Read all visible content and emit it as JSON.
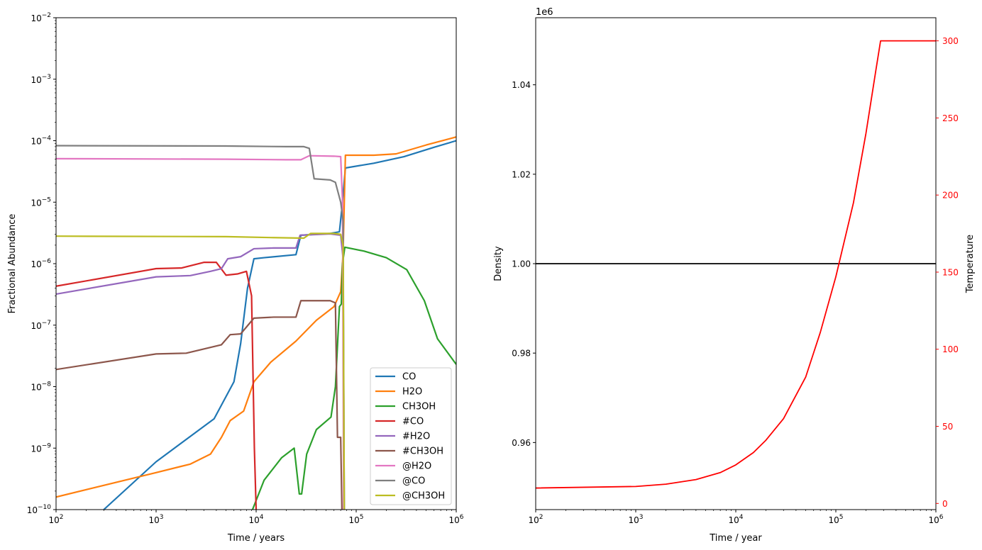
{
  "chart_data": [
    {
      "type": "line",
      "xscale": "log",
      "yscale": "log",
      "xlabel": "Time / years",
      "ylabel": "Fractional Abundance",
      "xlim": [
        100,
        1000000
      ],
      "ylim": [
        1e-10,
        0.01
      ],
      "x_ticks": [
        {
          "value": 100,
          "base": "10",
          "exp": "2"
        },
        {
          "value": 1000,
          "base": "10",
          "exp": "3"
        },
        {
          "value": 10000,
          "base": "10",
          "exp": "4"
        },
        {
          "value": 100000,
          "base": "10",
          "exp": "5"
        },
        {
          "value": 1000000,
          "base": "10",
          "exp": "6"
        }
      ],
      "y_ticks": [
        {
          "value": 1e-10,
          "base": "10",
          "exp": "−10"
        },
        {
          "value": 1e-09,
          "base": "10",
          "exp": "−9"
        },
        {
          "value": 1e-08,
          "base": "10",
          "exp": "−8"
        },
        {
          "value": 1e-07,
          "base": "10",
          "exp": "−7"
        },
        {
          "value": 1e-06,
          "base": "10",
          "exp": "−6"
        },
        {
          "value": 1e-05,
          "base": "10",
          "exp": "−5"
        },
        {
          "value": 0.0001,
          "base": "10",
          "exp": "−4"
        },
        {
          "value": 0.001,
          "base": "10",
          "exp": "−3"
        },
        {
          "value": 0.01,
          "base": "10",
          "exp": "−2"
        }
      ],
      "legend_position": "lower-right",
      "series": [
        {
          "name": "CO",
          "color": "#1f77b4",
          "points": [
            [
              300,
              1e-10
            ],
            [
              1000,
              6e-10
            ],
            [
              3800,
              3e-09
            ],
            [
              6000,
              1.2e-08
            ],
            [
              7000,
              5e-08
            ],
            [
              8200,
              4e-07
            ],
            [
              9500,
              1.2e-06
            ],
            [
              12000,
              1.25e-06
            ],
            [
              25000,
              1.4e-06
            ],
            [
              28000,
              2.9e-06
            ],
            [
              55000,
              3.1e-06
            ],
            [
              68000,
              3.3e-06
            ],
            [
              72000,
              8e-06
            ],
            [
              78000,
              3.6e-05
            ],
            [
              150000,
              4.3e-05
            ],
            [
              300000,
              5.5e-05
            ],
            [
              600000,
              7.8e-05
            ],
            [
              1000000,
              0.0001
            ]
          ]
        },
        {
          "name": "H2O",
          "color": "#ff7f0e",
          "points": [
            [
              100,
              1.6e-10
            ],
            [
              1000,
              4e-10
            ],
            [
              2200,
              5.5e-10
            ],
            [
              3500,
              8e-10
            ],
            [
              4500,
              1.5e-09
            ],
            [
              5500,
              2.8e-09
            ],
            [
              7500,
              4e-09
            ],
            [
              9500,
              1.2e-08
            ],
            [
              14000,
              2.5e-08
            ],
            [
              25000,
              5.5e-08
            ],
            [
              40000,
              1.2e-07
            ],
            [
              60000,
              2e-07
            ],
            [
              70000,
              3.5e-07
            ],
            [
              74000,
              1.5e-06
            ],
            [
              78000,
              5.8e-05
            ],
            [
              150000,
              5.8e-05
            ],
            [
              250000,
              6.1e-05
            ],
            [
              500000,
              8.5e-05
            ],
            [
              1000000,
              0.000115
            ]
          ]
        },
        {
          "name": "CH3OH",
          "color": "#2ca02c",
          "points": [
            [
              9200,
              1e-10
            ],
            [
              12000,
              3e-10
            ],
            [
              18000,
              7e-10
            ],
            [
              24000,
              1e-09
            ],
            [
              27000,
              1.8e-10
            ],
            [
              28500,
              1.8e-10
            ],
            [
              32000,
              8e-10
            ],
            [
              40000,
              2e-09
            ],
            [
              56000,
              3.2e-09
            ],
            [
              62000,
              1e-08
            ],
            [
              68000,
              2e-07
            ],
            [
              71000,
              2.2e-07
            ],
            [
              73000,
              1e-06
            ],
            [
              77000,
              1.85e-06
            ],
            [
              120000,
              1.6e-06
            ],
            [
              200000,
              1.25e-06
            ],
            [
              320000,
              8e-07
            ],
            [
              480000,
              2.5e-07
            ],
            [
              650000,
              6e-08
            ],
            [
              1000000,
              2.3e-08
            ]
          ]
        },
        {
          "name": "#CO",
          "color": "#d62728",
          "points": [
            [
              100,
              4.3e-07
            ],
            [
              1000,
              8.3e-07
            ],
            [
              1800,
              8.5e-07
            ],
            [
              3000,
              1.05e-06
            ],
            [
              4000,
              1.05e-06
            ],
            [
              5000,
              6.5e-07
            ],
            [
              6500,
              6.8e-07
            ],
            [
              8000,
              7.5e-07
            ],
            [
              9000,
              3e-07
            ],
            [
              9600,
              1e-09
            ],
            [
              10000,
              1e-10
            ]
          ]
        },
        {
          "name": "#H2O",
          "color": "#9467bd",
          "points": [
            [
              100,
              3.2e-07
            ],
            [
              1000,
              6.1e-07
            ],
            [
              2200,
              6.4e-07
            ],
            [
              3500,
              7.5e-07
            ],
            [
              4500,
              8.3e-07
            ],
            [
              5200,
              1.2e-06
            ],
            [
              7000,
              1.3e-06
            ],
            [
              9500,
              1.75e-06
            ],
            [
              15000,
              1.8e-06
            ],
            [
              25000,
              1.8e-06
            ],
            [
              27500,
              2.9e-06
            ],
            [
              55000,
              3.05e-06
            ],
            [
              70000,
              2.9e-06
            ],
            [
              74000,
              1.2e-06
            ],
            [
              76000,
              1e-10
            ]
          ]
        },
        {
          "name": "#CH3OH",
          "color": "#8c564b",
          "points": [
            [
              100,
              1.9e-08
            ],
            [
              1000,
              3.4e-08
            ],
            [
              2000,
              3.5e-08
            ],
            [
              3200,
              4.2e-08
            ],
            [
              4500,
              4.8e-08
            ],
            [
              5500,
              7e-08
            ],
            [
              7000,
              7.2e-08
            ],
            [
              9500,
              1.3e-07
            ],
            [
              15000,
              1.35e-07
            ],
            [
              25000,
              1.35e-07
            ],
            [
              28000,
              2.5e-07
            ],
            [
              55000,
              2.5e-07
            ],
            [
              62000,
              2.3e-07
            ],
            [
              65000,
              1.5e-09
            ],
            [
              70000,
              1.5e-09
            ],
            [
              72000,
              1e-10
            ]
          ]
        },
        {
          "name": "@H2O",
          "color": "#e377c2",
          "points": [
            [
              100,
              5.1e-05
            ],
            [
              5000,
              5e-05
            ],
            [
              20000,
              4.9e-05
            ],
            [
              28000,
              4.9e-05
            ],
            [
              34000,
              5.7e-05
            ],
            [
              60000,
              5.6e-05
            ],
            [
              70000,
              5.5e-05
            ],
            [
              73000,
              1e-05
            ],
            [
              75000,
              1e-10
            ]
          ]
        },
        {
          "name": "@CO",
          "color": "#7f7f7f",
          "points": [
            [
              100,
              8.3e-05
            ],
            [
              5000,
              8.2e-05
            ],
            [
              20000,
              8e-05
            ],
            [
              30000,
              8e-05
            ],
            [
              34000,
              7.5e-05
            ],
            [
              38000,
              2.4e-05
            ],
            [
              55000,
              2.3e-05
            ],
            [
              62000,
              2.1e-05
            ],
            [
              70000,
              1e-05
            ],
            [
              74000,
              5e-06
            ],
            [
              76000,
              1e-10
            ]
          ]
        },
        {
          "name": "@CH3OH",
          "color": "#bcbd22",
          "points": [
            [
              100,
              2.8e-06
            ],
            [
              5000,
              2.75e-06
            ],
            [
              15000,
              2.65e-06
            ],
            [
              30000,
              2.6e-06
            ],
            [
              35000,
              3.1e-06
            ],
            [
              60000,
              3.1e-06
            ],
            [
              70000,
              3e-06
            ],
            [
              74000,
              2e-06
            ],
            [
              76000,
              1e-10
            ]
          ]
        }
      ]
    },
    {
      "type": "line",
      "xscale": "log",
      "xlabel": "Time / year",
      "ylabel_left": "Density",
      "ylabel_right": "Temperature",
      "offset_label": "1e6",
      "xlim": [
        100,
        1000000
      ],
      "ylim_left": [
        0.945,
        1.055
      ],
      "ylim_right": [
        -4,
        315
      ],
      "x_ticks": [
        {
          "value": 100,
          "base": "10",
          "exp": "2"
        },
        {
          "value": 1000,
          "base": "10",
          "exp": "3"
        },
        {
          "value": 10000,
          "base": "10",
          "exp": "4"
        },
        {
          "value": 100000,
          "base": "10",
          "exp": "5"
        },
        {
          "value": 1000000,
          "base": "10",
          "exp": "6"
        }
      ],
      "y_left_ticks": [
        {
          "value": 0.96,
          "label": "0.96"
        },
        {
          "value": 0.98,
          "label": "0.98"
        },
        {
          "value": 1.0,
          "label": "1.00"
        },
        {
          "value": 1.02,
          "label": "1.02"
        },
        {
          "value": 1.04,
          "label": "1.04"
        }
      ],
      "y_right_ticks": [
        {
          "value": 0,
          "label": "0"
        },
        {
          "value": 50,
          "label": "50"
        },
        {
          "value": 100,
          "label": "100"
        },
        {
          "value": 150,
          "label": "150"
        },
        {
          "value": 200,
          "label": "200"
        },
        {
          "value": 250,
          "label": "250"
        },
        {
          "value": 300,
          "label": "300"
        }
      ],
      "series": [
        {
          "name": "Density",
          "axis": "left",
          "color": "#000000",
          "points": [
            [
              100,
              1.0
            ],
            [
              1000000,
              1.0
            ]
          ]
        },
        {
          "name": "Temperature",
          "axis": "right",
          "color": "#ff0000",
          "points": [
            [
              100,
              10
            ],
            [
              1000,
              11
            ],
            [
              2000,
              12.5
            ],
            [
              4000,
              15.5
            ],
            [
              7000,
              20
            ],
            [
              10000,
              25
            ],
            [
              15000,
              33
            ],
            [
              20000,
              41
            ],
            [
              30000,
              55
            ],
            [
              50000,
              82
            ],
            [
              70000,
              111
            ],
            [
              100000,
              147
            ],
            [
              150000,
              195
            ],
            [
              200000,
              240
            ],
            [
              250000,
              280
            ],
            [
              280000,
              300
            ],
            [
              1000000,
              300
            ]
          ]
        }
      ]
    }
  ]
}
